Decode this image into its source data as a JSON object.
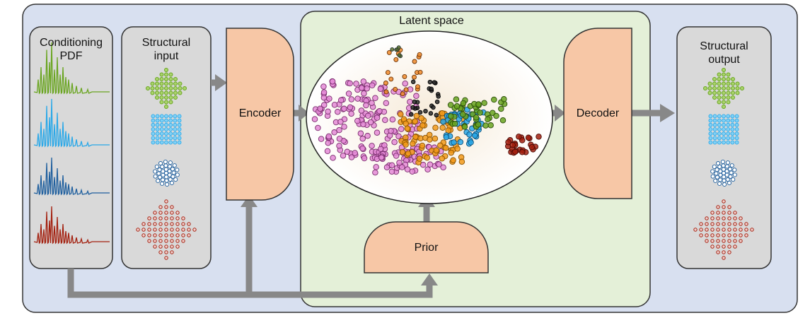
{
  "panels": {
    "conditioning": {
      "line1": "Conditioning",
      "line2": "PDF"
    },
    "structural_input": {
      "line1": "Structural",
      "line2": "input"
    },
    "structural_output": {
      "line1": "Structural",
      "line2": "output"
    }
  },
  "blocks": {
    "encoder": "Encoder",
    "decoder": "Decoder",
    "prior": "Prior",
    "latent_space": "Latent space"
  },
  "colors": {
    "outer_bg": "#d8e0f0",
    "panel_bg": "#d9d9d9",
    "latent_bg": "#e4f0d8",
    "block_fill": "#f7c7a6",
    "arrow": "#888888",
    "green": "#6aa521",
    "light_blue": "#2aa8e8",
    "dark_blue": "#1f5f9e",
    "dark_red": "#a3200f",
    "pink": "#e06bcf",
    "orange": "#f29a1b"
  },
  "structure_icons": [
    "green-diamond-lattice",
    "light-blue-square-lattice",
    "dark-blue-cluster",
    "red-diamond-lattice"
  ],
  "pdf_curves": [
    "green-pdf-curve",
    "light-blue-pdf-curve",
    "dark-blue-pdf-curve",
    "dark-red-pdf-curve"
  ]
}
